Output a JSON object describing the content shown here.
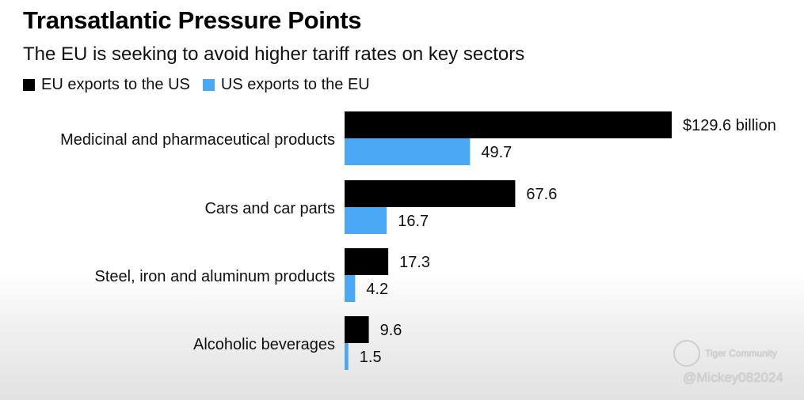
{
  "chart_data": {
    "type": "bar",
    "orientation": "horizontal",
    "title": "Transatlantic Pressure Points",
    "subtitle": "The EU is seeking to avoid higher tariff rates on key sectors",
    "categories": [
      "Medicinal and pharmaceutical products",
      "Cars and car parts",
      "Steel, iron and aluminum products",
      "Alcoholic beverages"
    ],
    "series": [
      {
        "name": "EU exports to the US",
        "color": "#000000",
        "values": [
          129.6,
          67.6,
          17.3,
          9.6
        ],
        "labels": [
          "$129.6 billion",
          "67.6",
          "17.3",
          "9.6"
        ]
      },
      {
        "name": "US exports to the EU",
        "color": "#4aa8f5",
        "values": [
          49.7,
          16.7,
          4.2,
          1.5
        ],
        "labels": [
          "49.7",
          "16.7",
          "4.2",
          "1.5"
        ]
      }
    ],
    "units": "billion USD",
    "xlabel": "",
    "ylabel": "",
    "xlim": [
      0,
      129.6
    ],
    "grid": false,
    "legend_position": "top-left"
  },
  "watermark": {
    "brand": "Tiger Community",
    "handle": "@Mickey082024"
  }
}
